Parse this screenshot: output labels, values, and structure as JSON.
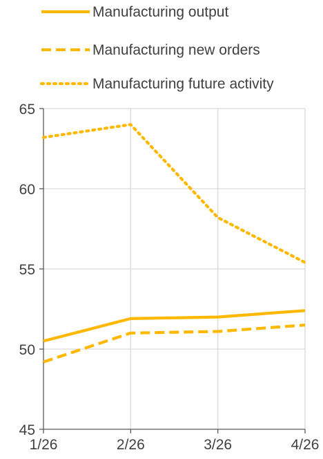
{
  "chart_data": {
    "type": "line",
    "title": "",
    "xlabel": "",
    "ylabel": "",
    "categories": [
      "1/26",
      "2/26",
      "3/26",
      "4/26"
    ],
    "ylim": [
      45,
      65
    ],
    "yticks": [
      45,
      50,
      55,
      60,
      65
    ],
    "grid": true,
    "legend_position": "top",
    "series": [
      {
        "name": "Manufacturing output",
        "values": [
          50.5,
          51.9,
          52.0,
          52.4
        ],
        "color": "#FFB800",
        "line_style": "solid"
      },
      {
        "name": "Manufacturing new orders",
        "values": [
          49.2,
          51.0,
          51.1,
          51.5
        ],
        "color": "#FFB800",
        "line_style": "dashed"
      },
      {
        "name": "Manufacturing future activity",
        "values": [
          63.2,
          64.0,
          58.2,
          55.4
        ],
        "color": "#FFB800",
        "line_style": "dotted"
      }
    ]
  }
}
